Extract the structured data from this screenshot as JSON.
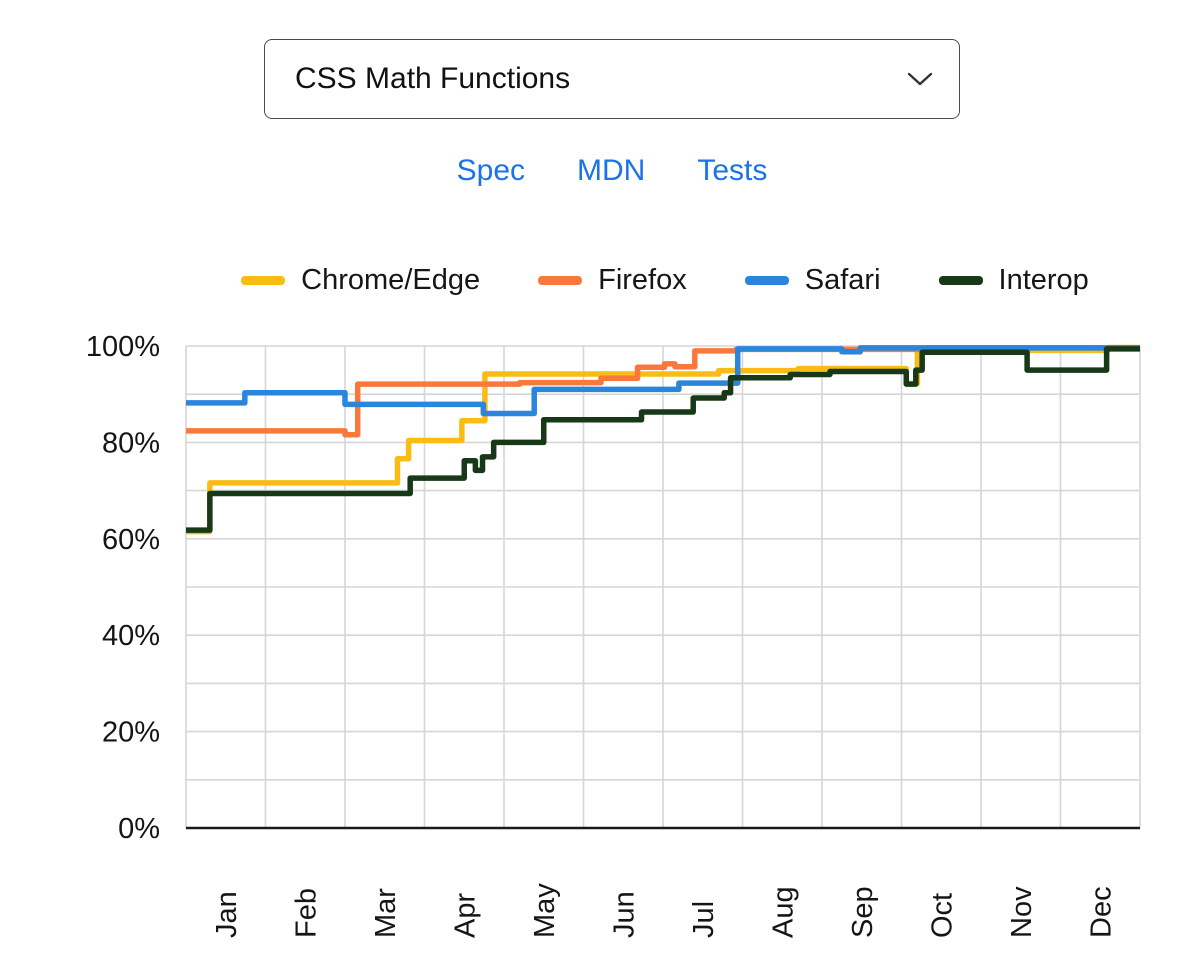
{
  "selector": {
    "value": "CSS Math Functions"
  },
  "links": [
    {
      "label": "Spec"
    },
    {
      "label": "MDN"
    },
    {
      "label": "Tests"
    }
  ],
  "colors": {
    "link": "#1a73e8",
    "text": "#1c1c1e",
    "grid": "#d6d6d6",
    "axis": "#1a1a1a",
    "chrome_edge": "#F9BC15",
    "firefox": "#F8793B",
    "safari": "#2A85DC",
    "interop": "#183918"
  },
  "chart_data": {
    "type": "line",
    "stepped": true,
    "title": "",
    "xlabel": "",
    "ylabel": "",
    "categories": [
      "Jan",
      "Feb",
      "Mar",
      "Apr",
      "May",
      "Jun",
      "Jul",
      "Aug",
      "Sep",
      "Oct",
      "Nov",
      "Dec"
    ],
    "yticks": [
      0,
      20,
      40,
      60,
      80,
      100
    ],
    "ytick_suffix": "%",
    "minor_grid_step": 10,
    "ylim": [
      0,
      100
    ],
    "xlim_months": [
      0,
      12
    ],
    "grid": true,
    "legend_position": "top",
    "units": "percent of tests passing",
    "series": [
      {
        "name": "Chrome/Edge",
        "color": "#F9BC15",
        "points": [
          [
            0,
            61.5
          ],
          [
            0.3,
            71.6
          ],
          [
            2.66,
            76.6
          ],
          [
            2.8,
            80.4
          ],
          [
            3.47,
            84.5
          ],
          [
            3.76,
            94.2
          ],
          [
            6.7,
            94.9
          ],
          [
            7.7,
            95.3
          ],
          [
            9.06,
            92.2
          ],
          [
            9.2,
            99.1
          ],
          [
            11.6,
            99.7
          ]
        ]
      },
      {
        "name": "Firefox",
        "color": "#F8793B",
        "points": [
          [
            0,
            82.4
          ],
          [
            2.0,
            81.6
          ],
          [
            2.16,
            92.1
          ],
          [
            4.2,
            92.4
          ],
          [
            5.22,
            93.3
          ],
          [
            5.68,
            95.6
          ],
          [
            6.02,
            96.3
          ],
          [
            6.15,
            95.7
          ],
          [
            6.4,
            99.0
          ],
          [
            6.92,
            99.3
          ],
          [
            9.3,
            99.6
          ]
        ]
      },
      {
        "name": "Safari",
        "color": "#2A85DC",
        "points": [
          [
            0,
            88.2
          ],
          [
            0.74,
            90.3
          ],
          [
            2.0,
            87.9
          ],
          [
            3.74,
            86.0
          ],
          [
            4.38,
            91.0
          ],
          [
            6.2,
            92.3
          ],
          [
            6.94,
            99.4
          ],
          [
            8.25,
            98.8
          ],
          [
            8.48,
            99.6
          ]
        ]
      },
      {
        "name": "Interop",
        "color": "#183918",
        "points": [
          [
            0,
            61.8
          ],
          [
            0.3,
            69.4
          ],
          [
            2.82,
            72.6
          ],
          [
            3.5,
            76.2
          ],
          [
            3.64,
            74.2
          ],
          [
            3.73,
            77.0
          ],
          [
            3.87,
            80.0
          ],
          [
            4.5,
            84.7
          ],
          [
            5.73,
            86.3
          ],
          [
            6.38,
            89.2
          ],
          [
            6.77,
            90.3
          ],
          [
            6.85,
            93.4
          ],
          [
            7.6,
            94.1
          ],
          [
            8.1,
            94.7
          ],
          [
            9.06,
            92.1
          ],
          [
            9.18,
            95.0
          ],
          [
            9.26,
            98.7
          ],
          [
            10.58,
            95.0
          ],
          [
            11.58,
            99.4
          ]
        ]
      }
    ]
  }
}
